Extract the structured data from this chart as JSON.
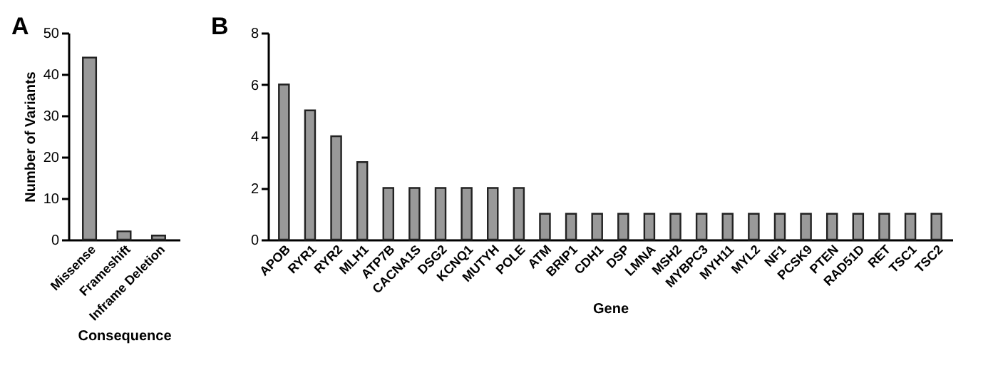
{
  "chart_data": [
    {
      "type": "bar",
      "title": "A",
      "xlabel": "Consequence",
      "ylabel": "Number of Variants",
      "categories": [
        "Missense",
        "Frameshift",
        "Inframe Deletion"
      ],
      "values": [
        44,
        2,
        1
      ],
      "color": "#999999",
      "ylim": [
        0,
        50
      ],
      "yticks": [
        0,
        10,
        20,
        30,
        40,
        50
      ],
      "grid": false
    },
    {
      "type": "bar",
      "title": "B",
      "xlabel": "Gene",
      "categories": [
        "APOB",
        "RYR1",
        "RYR2",
        "MLH1",
        "ATP7B",
        "CACNA1S",
        "DSG2",
        "KCNQ1",
        "MUTYH",
        "POLE",
        "ATM",
        "BRIP1",
        "CDH1",
        "DSP",
        "LMNA",
        "MSH2",
        "MYBPC3",
        "MYH11",
        "MYL2",
        "NF1",
        "PCSK9",
        "PTEN",
        "RAD51D",
        "RET",
        "TSC1",
        "TSC2"
      ],
      "values": [
        6,
        5,
        4,
        3,
        2,
        2,
        2,
        2,
        2,
        2,
        1,
        1,
        1,
        1,
        1,
        1,
        1,
        1,
        1,
        1,
        1,
        1,
        1,
        1,
        1,
        1
      ],
      "color": "#999999",
      "ylim": [
        0,
        8
      ],
      "yticks": [
        0,
        2,
        4,
        6,
        8
      ],
      "grid": false
    }
  ]
}
